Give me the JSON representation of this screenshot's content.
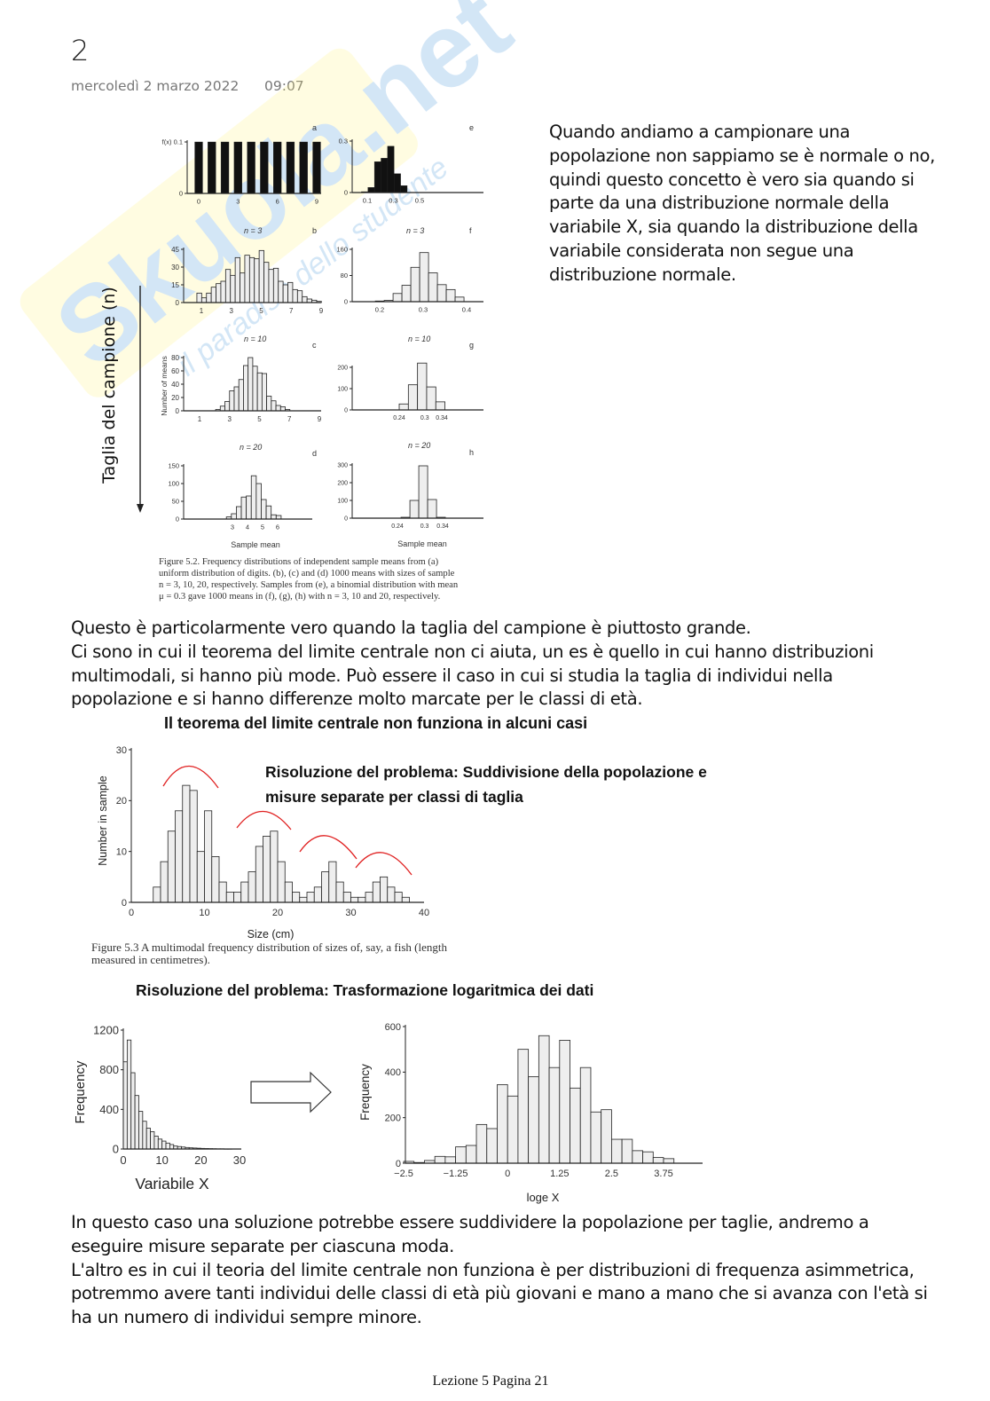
{
  "header": {
    "title": "2",
    "date": "mercoledì 2 marzo 2022",
    "time": "09:07"
  },
  "watermark": {
    "brand": "Skuola.net",
    "tagline": "il paradiso dello studente"
  },
  "intro_lines": [
    "Quando andiamo a campionare una",
    "popolazione non sappiamo se è normale o no,",
    "quindi questo concetto è vero sia quando si",
    "parte da una distribuzione normale della",
    "variabile X, sia quando la distribuzione della",
    "variabile considerata non segue una",
    "distribuzione normale."
  ],
  "figure52": {
    "side_label": "Taglia del campione (n)",
    "y_label": "Number of means",
    "x_label": "Sample mean",
    "panel_letters": [
      "a",
      "e",
      "b",
      "f",
      "c",
      "g",
      "d",
      "h"
    ],
    "n_labels": [
      "n = 3",
      "n = 3",
      "n = 10",
      "n = 10",
      "n = 20",
      "n = 20"
    ],
    "caption_lines": [
      "Figure 5.2. Frequency distributions of independent sample means from (a)",
      "uniform distribution of digits. (b), (c) and (d) 1000 means with sizes of sample",
      "n = 3, 10, 20, respectively. Samples from (e), a binomial distribution with mean",
      "μ = 0.3 gave 1000 means in (f), (g), (h) with n = 3, 10 and 20, respectively."
    ]
  },
  "middle_lines": [
    "Questo è particolarmente vero quando la taglia del campione è piuttosto grande.",
    "Ci sono in cui il teorema del limite centrale non ci aiuta, un es è quello in cui hanno distribuzioni",
    "multimodali, si hanno più mode. Può essere il caso in cui si studia la taglia di individui nella",
    "popolazione e si hanno differenze molto marcate per le classi di età."
  ],
  "heading_clt": "Il teorema del limite centrale non funziona in alcuni casi",
  "figure53": {
    "solution_lines": [
      "Risoluzione del problema: Suddivisione della popolazione e",
      "misure separate per classi di taglia"
    ],
    "y_label": "Number in sample",
    "x_label": "Size (cm)",
    "caption_lines": [
      "Figure 5.3  A multimodal frequency distribution of sizes of, say, a fish (length",
      "measured in centimetres)."
    ]
  },
  "heading_log": "Risoluzione del problema: Trasformazione logaritmica dei dati",
  "log_figure": {
    "left_y_label": "Frequency",
    "left_x_label": "Variabile X",
    "right_y_label": "Frequency",
    "right_x_label_main": "log",
    "right_x_label_sub": "e",
    "right_x_label_var": " X"
  },
  "closing_lines": [
    "In questo caso una soluzione potrebbe essere suddividere la popolazione per taglie, andremo a",
    "eseguire misure separate per ciascuna moda.",
    "L'altro es in cui il teoria del limite centrale non funziona è per distribuzioni di frequenza asimmetrica,",
    "potremmo avere tanti individui delle classi di età più giovani e mano a mano che si avanza con l'età si",
    "ha un numero di individui sempre minore."
  ],
  "footer": "Lezione 5 Pagina 21",
  "colors": {
    "bar_fill": "#eeeeee",
    "bar_dark": "#111111",
    "annotation": "#e02020"
  },
  "chart_data": [
    {
      "id": "a",
      "type": "bar",
      "title": "a",
      "bin_start": -0.3,
      "bin_step": 1,
      "bar_width": 0.6,
      "values": [
        0.1,
        0.1,
        0.1,
        0.1,
        0.1,
        0.1,
        0.1,
        0.1,
        0.1,
        0.1
      ],
      "dark": true,
      "xticks": [
        0,
        3,
        6,
        9
      ],
      "xtick_labels": [
        "0",
        "3",
        "6",
        "9"
      ],
      "yticks": [
        0,
        0.1
      ],
      "ytick_labels": [
        "0",
        "f(x) 0.1"
      ],
      "ylim": [
        0,
        0.1
      ]
    },
    {
      "id": "e",
      "type": "bar",
      "title": "e",
      "bin_start": 0.055,
      "bin_step": 0.05,
      "bar_width": 0.05,
      "values": [
        0.005,
        0.03,
        0.18,
        0.2,
        0.27,
        0.11,
        0.04
      ],
      "dark": true,
      "xticks": [
        0.1,
        0.3,
        0.5
      ],
      "xtick_labels": [
        "0.1",
        "0.3",
        "0.5"
      ],
      "yticks": [
        0,
        0.3
      ],
      "ytick_labels": [
        "0",
        "0.3"
      ],
      "ylim": [
        0,
        0.3
      ]
    },
    {
      "id": "b",
      "type": "bar",
      "title": "n = 3",
      "bin_start": 0.7,
      "bin_step": 0.32,
      "bar_width": 0.32,
      "values": [
        8,
        4,
        8,
        13,
        16,
        18,
        28,
        23,
        38,
        25,
        40,
        38,
        37,
        44,
        34,
        28,
        29,
        18,
        15,
        17,
        11,
        10,
        5,
        3,
        2,
        1
      ],
      "xticks": [
        1,
        3,
        5,
        7,
        9
      ],
      "xtick_labels": [
        "1",
        "3",
        "5",
        "7",
        "9"
      ],
      "yticks": [
        0,
        15,
        30,
        45
      ],
      "ytick_labels": [
        "0",
        "15",
        "30",
        "45"
      ],
      "ylim": [
        0,
        45
      ]
    },
    {
      "id": "f",
      "type": "bar",
      "title": "n = 3",
      "bin_start": 0.19,
      "bin_step": 0.0204,
      "bar_width": 0.0204,
      "values": [
        2,
        4,
        25,
        50,
        105,
        150,
        88,
        52,
        37,
        14
      ],
      "xticks": [
        0.2,
        0.3,
        0.4
      ],
      "xtick_labels": [
        "0.2",
        "0.3",
        "0.4"
      ],
      "yticks": [
        0,
        80,
        160
      ],
      "ytick_labels": [
        "0",
        "80",
        "160"
      ],
      "ylim": [
        0,
        160
      ]
    },
    {
      "id": "c",
      "type": "bar",
      "title": "n = 10",
      "bin_start": 2.07,
      "bin_step": 0.31,
      "bar_width": 0.31,
      "values": [
        2,
        7,
        14,
        30,
        36,
        47,
        68,
        80,
        67,
        57,
        56,
        22,
        15,
        8,
        6,
        2
      ],
      "xticks": [
        1,
        3,
        5,
        7,
        9
      ],
      "xtick_labels": [
        "1",
        "3",
        "5",
        "7",
        "9"
      ],
      "yticks": [
        0,
        20,
        40,
        60,
        80
      ],
      "ytick_labels": [
        "0",
        "20",
        "40",
        "60",
        "80"
      ],
      "ylim": [
        0,
        80
      ]
    },
    {
      "id": "g",
      "type": "bar",
      "title": "n = 10",
      "bin_start": 0.24,
      "bin_step": 0.0215,
      "bar_width": 0.0215,
      "values": [
        28,
        118,
        220,
        108,
        38
      ],
      "xticks": [
        0.24,
        0.3,
        0.34
      ],
      "xtick_labels": [
        "0.24",
        "0.3",
        "0.34"
      ],
      "yticks": [
        0,
        100,
        200
      ],
      "ytick_labels": [
        "0",
        "100",
        "200"
      ],
      "ylim": [
        0,
        200
      ]
    },
    {
      "id": "d",
      "type": "bar",
      "title": "n = 20",
      "bin_start": 2.6,
      "bin_step": 0.33,
      "bar_width": 0.33,
      "values": [
        6,
        15,
        35,
        62,
        65,
        122,
        100,
        55,
        37,
        12,
        10
      ],
      "xticks": [
        3,
        4,
        5,
        6
      ],
      "xtick_labels": [
        "3",
        "4",
        "5",
        "6"
      ],
      "yticks": [
        0,
        50,
        100,
        150
      ],
      "ytick_labels": [
        "0",
        "50",
        "100",
        "150"
      ],
      "ylim": [
        0,
        150
      ]
    },
    {
      "id": "h",
      "type": "bar",
      "title": "n = 20",
      "bin_start": 0.248,
      "bin_step": 0.0196,
      "bar_width": 0.0196,
      "values": [
        5,
        100,
        295,
        105,
        5
      ],
      "xticks": [
        0.24,
        0.3,
        0.34
      ],
      "xtick_labels": [
        "0.24",
        "0.3",
        "0.34"
      ],
      "yticks": [
        0,
        100,
        200,
        300
      ],
      "ytick_labels": [
        "0",
        "100",
        "200",
        "300"
      ],
      "ylim": [
        0,
        300
      ]
    },
    {
      "id": "fig53",
      "type": "bar",
      "title": "",
      "xlabel": "Size (cm)",
      "ylabel": "Number in sample",
      "bin_start": 3,
      "bin_step": 1,
      "bar_width": 1,
      "values": [
        3,
        8,
        14,
        18,
        23,
        22,
        10,
        18,
        9,
        4,
        2,
        2,
        4,
        6,
        11,
        13,
        14,
        8,
        4,
        2,
        1,
        2,
        3,
        6,
        8,
        4,
        2,
        1,
        1,
        2,
        4,
        5,
        3,
        2,
        1
      ],
      "xticks": [
        0,
        10,
        20,
        30,
        40
      ],
      "xtick_labels": [
        "0",
        "10",
        "20",
        "30",
        "40"
      ],
      "yticks": [
        0,
        10,
        20,
        30
      ],
      "ytick_labels": [
        "0",
        "10",
        "20",
        "30"
      ],
      "xlim": [
        0,
        40
      ],
      "ylim": [
        0,
        30
      ]
    },
    {
      "id": "varx",
      "type": "bar",
      "title": "",
      "xlabel": "Variabile X",
      "ylabel": "Frequency",
      "bin_start": 0,
      "bin_step": 1,
      "bar_width": 1,
      "values": [
        880,
        1100,
        770,
        540,
        380,
        280,
        210,
        175,
        130,
        100,
        80,
        60,
        45,
        30,
        25,
        20,
        15,
        12,
        10,
        8,
        6,
        5,
        4,
        3,
        2,
        2,
        1,
        1
      ],
      "xticks": [
        0,
        10,
        20,
        30
      ],
      "xtick_labels": [
        "0",
        "10",
        "20",
        "30"
      ],
      "yticks": [
        0,
        400,
        800,
        1200
      ],
      "ytick_labels": [
        "0",
        "400",
        "800",
        "1200"
      ],
      "xlim": [
        0,
        30
      ],
      "ylim": [
        0,
        1200
      ]
    },
    {
      "id": "logx",
      "type": "bar",
      "title": "",
      "xlabel": "loge X",
      "ylabel": "Frequency",
      "bin_start": -2.5,
      "bin_step": 0.25,
      "bar_width": 0.25,
      "values": [
        8,
        3,
        12,
        30,
        28,
        72,
        78,
        170,
        152,
        345,
        295,
        500,
        380,
        560,
        420,
        540,
        330,
        420,
        225,
        235,
        105,
        105,
        55,
        50,
        25,
        20
      ],
      "xticks": [
        -2.5,
        -1.25,
        0,
        1.25,
        2.5,
        3.75
      ],
      "xtick_labels": [
        "−2.5",
        "−1.25",
        "0",
        "1.25",
        "2.5",
        "3.75"
      ],
      "yticks": [
        0,
        200,
        400,
        600
      ],
      "ytick_labels": [
        "0",
        "200",
        "400",
        "600"
      ],
      "ylim": [
        0,
        600
      ]
    }
  ]
}
